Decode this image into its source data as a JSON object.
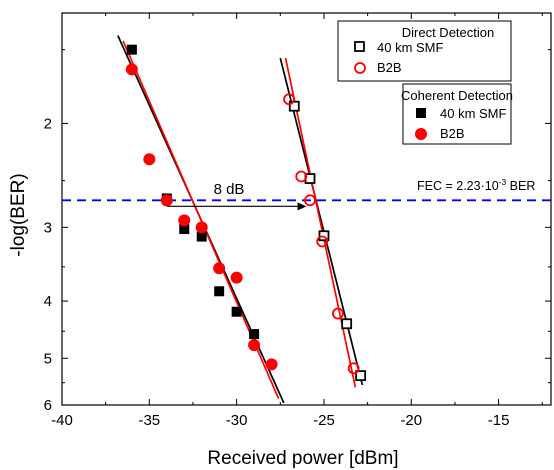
{
  "chart_data": {
    "type": "scatter",
    "xlabel": "Received power [dBm]",
    "ylabel": "-log(BER)",
    "xlim": [
      -40,
      -12
    ],
    "ylim": [
      6,
      1.3
    ],
    "y_scale": "log (reversed, -log(BER))",
    "x_ticks": [
      -40,
      -35,
      -30,
      -25,
      -20,
      -15
    ],
    "y_ticks": [
      2,
      3,
      4,
      5,
      6
    ],
    "grid": false,
    "legend_groups": [
      {
        "title": "Direct Detection",
        "position": "top-right",
        "entries": [
          "40 km SMF",
          "B2B"
        ]
      },
      {
        "title": "Coherent Detection",
        "position": "right",
        "entries": [
          "40 km SMF",
          "B2B"
        ]
      }
    ],
    "series": [
      {
        "name": "Direct Detection 40 km SMF",
        "marker": "open-square",
        "color": "#000000",
        "x": [
          -26.7,
          -25.8,
          -25.0,
          -23.7,
          -22.9
        ],
        "y": [
          1.87,
          2.48,
          3.1,
          4.37,
          5.35
        ]
      },
      {
        "name": "Direct Detection B2B",
        "marker": "open-circle",
        "color": "#ff0000",
        "x": [
          -27.0,
          -26.3,
          -25.8,
          -25.1,
          -24.2,
          -23.3
        ],
        "y": [
          1.82,
          2.46,
          2.7,
          3.17,
          4.2,
          5.2
        ]
      },
      {
        "name": "Coherent Detection 40 km SMF",
        "marker": "filled-square",
        "color": "#000000",
        "x": [
          -36.0,
          -34.0,
          -33.0,
          -32.0,
          -31.0,
          -30.0,
          -29.0
        ],
        "y": [
          1.5,
          2.68,
          3.02,
          3.11,
          3.85,
          4.17,
          4.55
        ]
      },
      {
        "name": "Coherent Detection B2B",
        "marker": "filled-circle",
        "color": "#ff0000",
        "x": [
          -36.0,
          -35.0,
          -34.0,
          -33.0,
          -32.0,
          -31.0,
          -30.0,
          -29.0,
          -28.0
        ],
        "y": [
          1.62,
          2.3,
          2.7,
          2.92,
          3.0,
          3.52,
          3.65,
          4.75,
          5.12
        ]
      }
    ],
    "fit_lines": [
      {
        "color": "#000000",
        "x": [
          -36.8,
          -27.3
        ],
        "y": [
          1.42,
          5.95
        ]
      },
      {
        "color": "#ff0000",
        "x": [
          -36.5,
          -27.6
        ],
        "y": [
          1.45,
          5.85
        ]
      },
      {
        "color": "#000000",
        "x": [
          -27.5,
          -22.8
        ],
        "y": [
          1.55,
          5.55
        ]
      },
      {
        "color": "#ff0000",
        "x": [
          -27.2,
          -23.2
        ],
        "y": [
          1.55,
          5.6
        ]
      }
    ],
    "threshold": {
      "y": 2.7,
      "color": "#0000ff",
      "style": "dashed"
    },
    "annotations": {
      "fec_label": "FEC = 2.23·10",
      "fec_exponent": "-3",
      "fec_unit": " BER",
      "gap_label": "8 dB",
      "gap_arrow": {
        "x_from": -34.0,
        "x_to": -26.0,
        "y": 2.7
      }
    }
  }
}
